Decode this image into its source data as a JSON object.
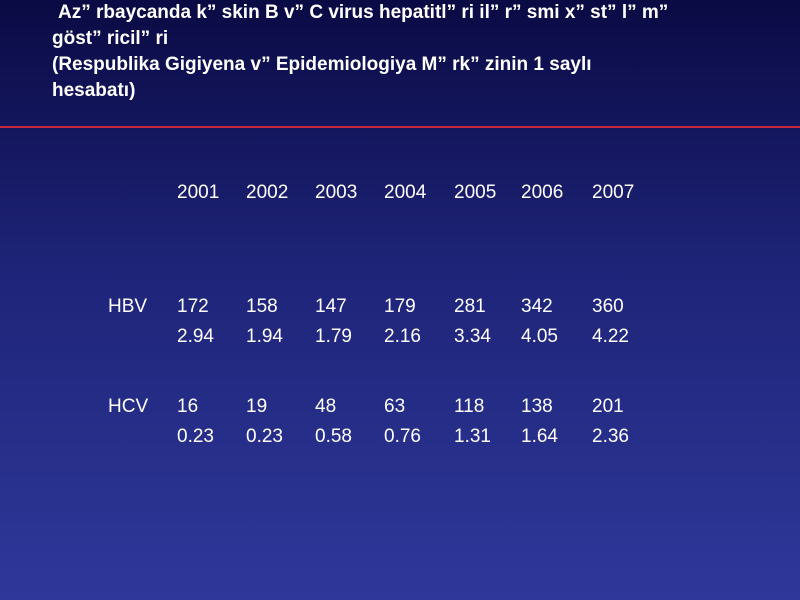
{
  "slide": {
    "title_lines": [
      "Az” rbaycanda k” skin B v”  C virus hepatitl” ri il”  r” smi x” st” l” m”",
      "göst” ricil” ri",
      "(Respublika Gigiyena v”  Epidemiologiya M” rk” zinin 1 saylı",
      "hesabatı)"
    ]
  },
  "table": {
    "years": [
      "2001",
      "2002",
      "2003",
      "2004",
      "2005",
      "2006",
      "2007"
    ],
    "rows": [
      {
        "label": "HBV",
        "counts": [
          "172",
          "158",
          "147",
          "179",
          "281",
          "342",
          "360"
        ],
        "rates": [
          "2.94",
          "1.94",
          "1.79",
          "2.16",
          "3.34",
          "4.05",
          "4.22"
        ]
      },
      {
        "label": "HCV",
        "counts": [
          "16",
          "19",
          "48",
          "63",
          "118",
          "138",
          "201"
        ],
        "rates": [
          "0.23",
          "0.23",
          "0.58",
          "0.76",
          "1.31",
          "1.64",
          "2.36"
        ]
      }
    ]
  },
  "colors": {
    "background_top": "#0a0a44",
    "background_bottom": "#2f389a",
    "divider": "#c8283c",
    "text": "#ffffff"
  }
}
